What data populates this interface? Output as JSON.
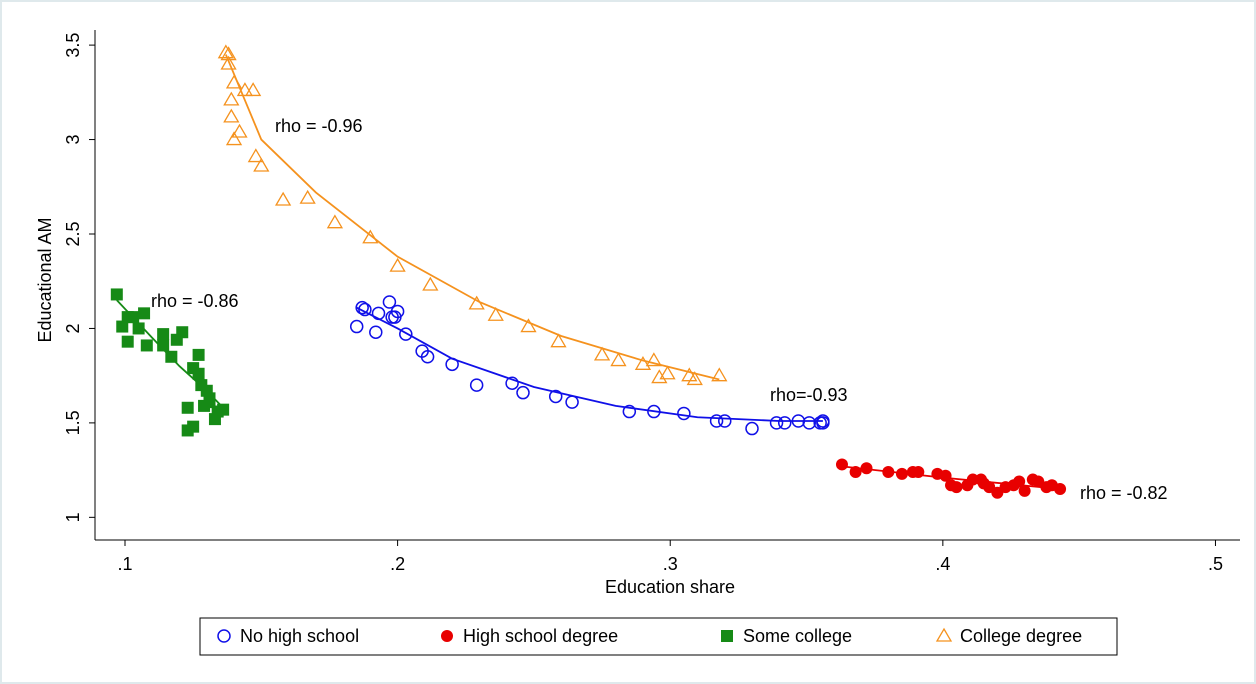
{
  "chart_data": {
    "type": "scatter",
    "x_label": "Education share",
    "y_label": "Educational AM",
    "xlim": [
      0.089,
      0.509
    ],
    "ylim": [
      0.88,
      3.58
    ],
    "xticks": [
      {
        "value": 0.1,
        "label": ".1"
      },
      {
        "value": 0.2,
        "label": ".2"
      },
      {
        "value": 0.3,
        "label": ".3"
      },
      {
        "value": 0.4,
        "label": ".4"
      },
      {
        "value": 0.5,
        "label": ".5"
      }
    ],
    "yticks": [
      1,
      1.5,
      2,
      2.5,
      3,
      3.5
    ],
    "series": [
      {
        "name": "No high school",
        "color": "#1010e8",
        "marker": "open-circle",
        "x": [
          0.185,
          0.187,
          0.188,
          0.192,
          0.193,
          0.197,
          0.198,
          0.199,
          0.2,
          0.203,
          0.209,
          0.211,
          0.22,
          0.229,
          0.242,
          0.246,
          0.258,
          0.264,
          0.285,
          0.294,
          0.305,
          0.317,
          0.32,
          0.33,
          0.339,
          0.342,
          0.347,
          0.351,
          0.355,
          0.356,
          0.356
        ],
        "values": [
          2.01,
          2.11,
          2.1,
          1.98,
          2.08,
          2.14,
          2.06,
          2.06,
          2.09,
          1.97,
          1.88,
          1.85,
          1.81,
          1.7,
          1.71,
          1.66,
          1.64,
          1.61,
          1.56,
          1.56,
          1.55,
          1.51,
          1.51,
          1.47,
          1.5,
          1.5,
          1.51,
          1.5,
          1.5,
          1.5,
          1.51
        ],
        "fit": {
          "x": [
            0.185,
            0.2,
            0.22,
            0.25,
            0.28,
            0.31,
            0.34,
            0.356
          ],
          "y": [
            2.11,
            2.0,
            1.84,
            1.69,
            1.59,
            1.53,
            1.51,
            1.51
          ]
        }
      },
      {
        "name": "High school degree",
        "color": "#e80000",
        "marker": "filled-circle",
        "x": [
          0.363,
          0.368,
          0.372,
          0.38,
          0.385,
          0.389,
          0.391,
          0.398,
          0.401,
          0.403,
          0.405,
          0.409,
          0.411,
          0.414,
          0.415,
          0.417,
          0.42,
          0.423,
          0.426,
          0.428,
          0.43,
          0.433,
          0.435,
          0.438,
          0.44,
          0.443
        ],
        "values": [
          1.28,
          1.24,
          1.26,
          1.24,
          1.23,
          1.24,
          1.24,
          1.23,
          1.22,
          1.17,
          1.16,
          1.17,
          1.2,
          1.2,
          1.18,
          1.16,
          1.13,
          1.16,
          1.17,
          1.19,
          1.14,
          1.2,
          1.19,
          1.16,
          1.17,
          1.15
        ],
        "fit": {
          "x": [
            0.363,
            0.4,
            0.443
          ],
          "y": [
            1.27,
            1.21,
            1.15
          ]
        }
      },
      {
        "name": "Some college",
        "color": "#168a16",
        "marker": "filled-square",
        "x": [
          0.097,
          0.099,
          0.101,
          0.101,
          0.103,
          0.105,
          0.107,
          0.108,
          0.114,
          0.114,
          0.117,
          0.119,
          0.121,
          0.123,
          0.123,
          0.125,
          0.125,
          0.127,
          0.127,
          0.128,
          0.129,
          0.13,
          0.131,
          0.131,
          0.133,
          0.134,
          0.136
        ],
        "values": [
          2.18,
          2.01,
          2.06,
          1.93,
          2.06,
          2.0,
          2.08,
          1.91,
          1.97,
          1.91,
          1.85,
          1.94,
          1.98,
          1.58,
          1.46,
          1.48,
          1.79,
          1.86,
          1.76,
          1.7,
          1.59,
          1.67,
          1.63,
          1.61,
          1.52,
          1.56,
          1.57
        ],
        "fit": {
          "x": [
            0.097,
            0.11,
            0.12,
            0.13,
            0.136
          ],
          "y": [
            2.15,
            1.95,
            1.8,
            1.67,
            1.58
          ]
        }
      },
      {
        "name": "College degree",
        "color": "#f5921e",
        "marker": "open-triangle",
        "x": [
          0.137,
          0.138,
          0.138,
          0.14,
          0.139,
          0.139,
          0.14,
          0.142,
          0.144,
          0.147,
          0.148,
          0.15,
          0.158,
          0.167,
          0.177,
          0.19,
          0.2,
          0.212,
          0.229,
          0.236,
          0.248,
          0.259,
          0.275,
          0.281,
          0.29,
          0.294,
          0.296,
          0.299,
          0.307,
          0.309,
          0.318
        ],
        "values": [
          3.46,
          3.45,
          3.4,
          3.3,
          3.21,
          3.12,
          3.0,
          3.04,
          3.26,
          3.26,
          2.91,
          2.86,
          2.68,
          2.69,
          2.56,
          2.48,
          2.33,
          2.23,
          2.13,
          2.07,
          2.01,
          1.93,
          1.86,
          1.83,
          1.81,
          1.83,
          1.74,
          1.76,
          1.75,
          1.73,
          1.75
        ],
        "fit": {
          "x": [
            0.137,
            0.15,
            0.17,
            0.2,
            0.23,
            0.26,
            0.29,
            0.318
          ],
          "y": [
            3.45,
            3.0,
            2.72,
            2.38,
            2.14,
            1.96,
            1.83,
            1.73
          ]
        }
      }
    ],
    "annotations": [
      "rho = -0.96",
      "rho = -0.86",
      "rho=-0.93",
      "rho = -0.82"
    ]
  }
}
